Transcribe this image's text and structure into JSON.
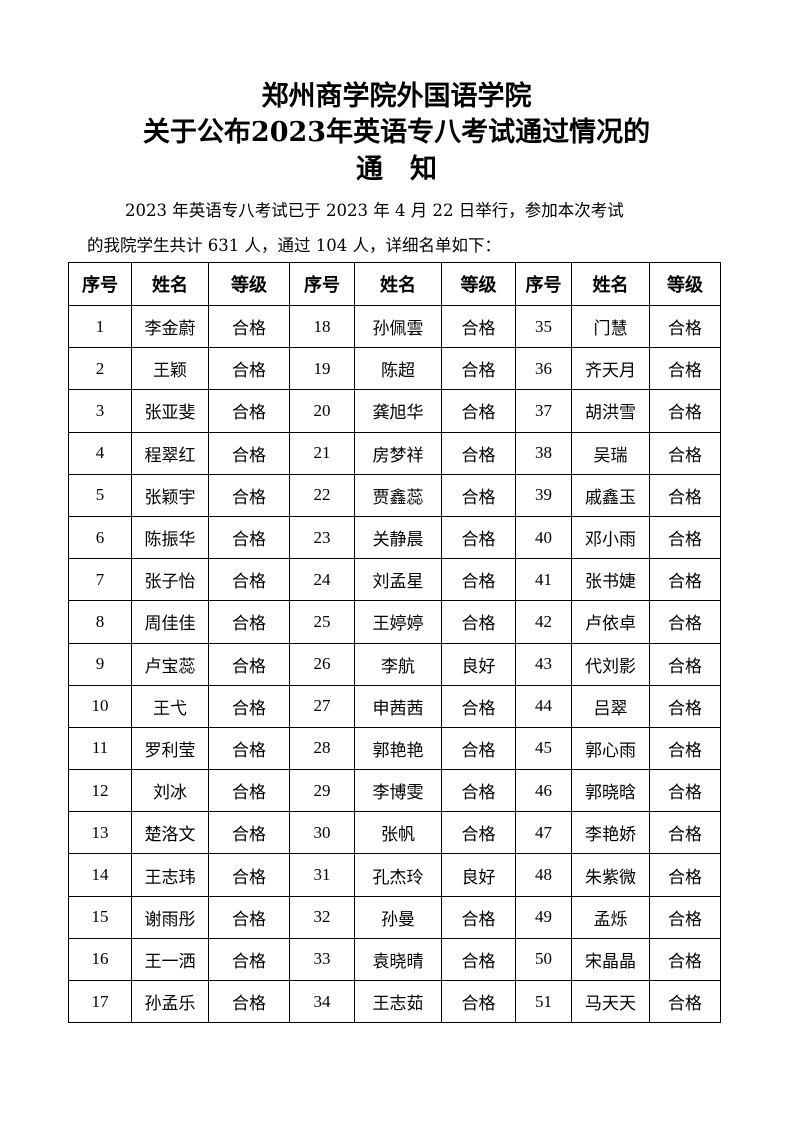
{
  "title": {
    "line1": "郑州商学院外国语学院",
    "line2": "关于公布2023年英语专八考试通过情况的",
    "line3": "通　知"
  },
  "intro": {
    "line1": "2023 年英语专八考试已于 2023 年 4 月 22 日举行，参加本次考试",
    "line2": "的我院学生共计 631 人，通过 104 人，详细名单如下："
  },
  "table": {
    "headers": [
      "序号",
      "姓名",
      "等级",
      "序号",
      "姓名",
      "等级",
      "序号",
      "姓名",
      "等级"
    ],
    "students": [
      {
        "no": "1",
        "name": "李金蔚",
        "grade": "合格"
      },
      {
        "no": "2",
        "name": "王颖",
        "grade": "合格"
      },
      {
        "no": "3",
        "name": "张亚斐",
        "grade": "合格"
      },
      {
        "no": "4",
        "name": "程翠红",
        "grade": "合格"
      },
      {
        "no": "5",
        "name": "张颖宇",
        "grade": "合格"
      },
      {
        "no": "6",
        "name": "陈振华",
        "grade": "合格"
      },
      {
        "no": "7",
        "name": "张子怡",
        "grade": "合格"
      },
      {
        "no": "8",
        "name": "周佳佳",
        "grade": "合格"
      },
      {
        "no": "9",
        "name": "卢宝蕊",
        "grade": "合格"
      },
      {
        "no": "10",
        "name": "王弋",
        "grade": "合格"
      },
      {
        "no": "11",
        "name": "罗利莹",
        "grade": "合格"
      },
      {
        "no": "12",
        "name": "刘冰",
        "grade": "合格"
      },
      {
        "no": "13",
        "name": "楚洛文",
        "grade": "合格"
      },
      {
        "no": "14",
        "name": "王志玮",
        "grade": "合格"
      },
      {
        "no": "15",
        "name": "谢雨彤",
        "grade": "合格"
      },
      {
        "no": "16",
        "name": "王一洒",
        "grade": "合格"
      },
      {
        "no": "17",
        "name": "孙孟乐",
        "grade": "合格"
      },
      {
        "no": "18",
        "name": "孙佩雲",
        "grade": "合格"
      },
      {
        "no": "19",
        "name": "陈超",
        "grade": "合格"
      },
      {
        "no": "20",
        "name": "龚旭华",
        "grade": "合格"
      },
      {
        "no": "21",
        "name": "房梦祥",
        "grade": "合格"
      },
      {
        "no": "22",
        "name": "贾鑫蕊",
        "grade": "合格"
      },
      {
        "no": "23",
        "name": "关静晨",
        "grade": "合格"
      },
      {
        "no": "24",
        "name": "刘孟星",
        "grade": "合格"
      },
      {
        "no": "25",
        "name": "王婷婷",
        "grade": "合格"
      },
      {
        "no": "26",
        "name": "李航",
        "grade": "良好"
      },
      {
        "no": "27",
        "name": "申茜茜",
        "grade": "合格"
      },
      {
        "no": "28",
        "name": "郭艳艳",
        "grade": "合格"
      },
      {
        "no": "29",
        "name": "李博雯",
        "grade": "合格"
      },
      {
        "no": "30",
        "name": "张帆",
        "grade": "合格"
      },
      {
        "no": "31",
        "name": "孔杰玲",
        "grade": "良好"
      },
      {
        "no": "32",
        "name": "孙曼",
        "grade": "合格"
      },
      {
        "no": "33",
        "name": "袁晓晴",
        "grade": "合格"
      },
      {
        "no": "34",
        "name": "王志茹",
        "grade": "合格"
      },
      {
        "no": "35",
        "name": "门慧",
        "grade": "合格"
      },
      {
        "no": "36",
        "name": "齐天月",
        "grade": "合格"
      },
      {
        "no": "37",
        "name": "胡洪雪",
        "grade": "合格"
      },
      {
        "no": "38",
        "name": "吴瑞",
        "grade": "合格"
      },
      {
        "no": "39",
        "name": "戚鑫玉",
        "grade": "合格"
      },
      {
        "no": "40",
        "name": "邓小雨",
        "grade": "合格"
      },
      {
        "no": "41",
        "name": "张书婕",
        "grade": "合格"
      },
      {
        "no": "42",
        "name": "卢依卓",
        "grade": "合格"
      },
      {
        "no": "43",
        "name": "代刘影",
        "grade": "合格"
      },
      {
        "no": "44",
        "name": "吕翠",
        "grade": "合格"
      },
      {
        "no": "45",
        "name": "郭心雨",
        "grade": "合格"
      },
      {
        "no": "46",
        "name": "郭晓晗",
        "grade": "合格"
      },
      {
        "no": "47",
        "name": "李艳娇",
        "grade": "合格"
      },
      {
        "no": "48",
        "name": "朱紫微",
        "grade": "合格"
      },
      {
        "no": "49",
        "name": "孟烁",
        "grade": "合格"
      },
      {
        "no": "50",
        "name": "宋晶晶",
        "grade": "合格"
      },
      {
        "no": "51",
        "name": "马天天",
        "grade": "合格"
      }
    ]
  }
}
